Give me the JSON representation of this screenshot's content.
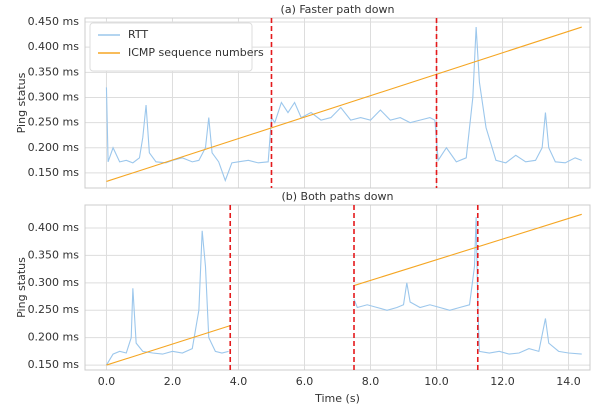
{
  "chart_data": [
    {
      "type": "line",
      "title": "(a) Faster path down",
      "ylabel": "Ping status",
      "xlim": [
        -0.65,
        14.65
      ],
      "ylim": [
        0.12,
        0.458
      ],
      "xticks": [
        0,
        2,
        4,
        6,
        8,
        10,
        12,
        14
      ],
      "yticks": [
        {
          "value": 0.15,
          "label": "0.150 ms"
        },
        {
          "value": 0.2,
          "label": "0.200 ms"
        },
        {
          "value": 0.25,
          "label": "0.250 ms"
        },
        {
          "value": 0.3,
          "label": "0.300 ms"
        },
        {
          "value": 0.35,
          "label": "0.350 ms"
        },
        {
          "value": 0.4,
          "label": "0.400 ms"
        },
        {
          "value": 0.45,
          "label": "0.450 ms"
        }
      ],
      "grid": true,
      "legend": "upper left",
      "vlines": [
        5.0,
        10.0
      ],
      "vline_color": "#e41a1c",
      "series": [
        {
          "name": "RTT",
          "color": "#9cc7ec",
          "x": [
            0.0,
            0.05,
            0.2,
            0.4,
            0.6,
            0.8,
            1.0,
            1.1,
            1.2,
            1.3,
            1.5,
            1.8,
            2.0,
            2.3,
            2.6,
            2.8,
            3.0,
            3.1,
            3.2,
            3.4,
            3.6,
            3.8,
            4.0,
            4.3,
            4.6,
            4.9,
            5.0,
            5.1,
            5.3,
            5.5,
            5.7,
            5.9,
            6.2,
            6.5,
            6.8,
            7.1,
            7.4,
            7.7,
            8.0,
            8.3,
            8.6,
            8.9,
            9.2,
            9.5,
            9.8,
            9.95,
            10.05,
            10.3,
            10.6,
            10.9,
            11.1,
            11.2,
            11.3,
            11.5,
            11.8,
            12.1,
            12.4,
            12.7,
            13.0,
            13.2,
            13.3,
            13.4,
            13.6,
            13.9,
            14.2,
            14.4
          ],
          "values": [
            0.32,
            0.172,
            0.2,
            0.172,
            0.175,
            0.17,
            0.18,
            0.22,
            0.285,
            0.19,
            0.172,
            0.17,
            0.175,
            0.18,
            0.172,
            0.175,
            0.2,
            0.26,
            0.19,
            0.172,
            0.135,
            0.17,
            0.172,
            0.175,
            0.17,
            0.172,
            0.26,
            0.25,
            0.29,
            0.27,
            0.29,
            0.26,
            0.27,
            0.255,
            0.26,
            0.28,
            0.255,
            0.26,
            0.255,
            0.275,
            0.255,
            0.26,
            0.25,
            0.255,
            0.26,
            0.255,
            0.175,
            0.2,
            0.172,
            0.18,
            0.3,
            0.44,
            0.33,
            0.24,
            0.175,
            0.17,
            0.185,
            0.172,
            0.175,
            0.2,
            0.27,
            0.2,
            0.172,
            0.17,
            0.18,
            0.175
          ]
        },
        {
          "name": "ICMP sequence numbers",
          "color": "#f5a623",
          "x": [
            0.0,
            14.4
          ],
          "values": [
            0.133,
            0.44
          ]
        }
      ]
    },
    {
      "type": "line",
      "title": "(b) Both paths down",
      "xlabel": "Time (s)",
      "ylabel": "Ping status",
      "xlim": [
        -0.65,
        14.65
      ],
      "ylim": [
        0.141,
        0.442
      ],
      "xticks": [
        {
          "value": 0,
          "label": "0.0"
        },
        {
          "value": 2,
          "label": "2.0"
        },
        {
          "value": 4,
          "label": "4.0"
        },
        {
          "value": 6,
          "label": "6.0"
        },
        {
          "value": 8,
          "label": "8.0"
        },
        {
          "value": 10,
          "label": "10.0"
        },
        {
          "value": 12,
          "label": "12.0"
        },
        {
          "value": 14,
          "label": "14.0"
        }
      ],
      "yticks": [
        {
          "value": 0.15,
          "label": "0.150 ms"
        },
        {
          "value": 0.2,
          "label": "0.200 ms"
        },
        {
          "value": 0.25,
          "label": "0.250 ms"
        },
        {
          "value": 0.3,
          "label": "0.300 ms"
        },
        {
          "value": 0.35,
          "label": "0.350 ms"
        },
        {
          "value": 0.4,
          "label": "0.400 ms"
        }
      ],
      "grid": true,
      "vlines": [
        3.75,
        7.5,
        11.25
      ],
      "vline_color": "#e41a1c",
      "series": [
        {
          "color": "#9cc7ec",
          "x": [
            0.0,
            0.2,
            0.4,
            0.6,
            0.75,
            0.8,
            0.9,
            1.1,
            1.4,
            1.7,
            2.0,
            2.3,
            2.6,
            2.8,
            2.9,
            3.0,
            3.1,
            3.3,
            3.5,
            3.7,
            3.75,
            7.5,
            7.6,
            7.9,
            8.2,
            8.5,
            8.8,
            9.0,
            9.1,
            9.2,
            9.5,
            9.8,
            10.1,
            10.4,
            10.7,
            11.0,
            11.15,
            11.2,
            11.25,
            11.3,
            11.6,
            11.9,
            12.2,
            12.5,
            12.8,
            13.1,
            13.3,
            13.4,
            13.7,
            14.0,
            14.4
          ],
          "values": [
            0.15,
            0.17,
            0.175,
            0.172,
            0.2,
            0.29,
            0.19,
            0.175,
            0.172,
            0.17,
            0.175,
            0.172,
            0.18,
            0.25,
            0.395,
            0.33,
            0.2,
            0.175,
            0.172,
            0.175,
            null,
            0.27,
            0.255,
            0.26,
            0.255,
            0.25,
            0.255,
            0.26,
            0.3,
            0.265,
            0.255,
            0.26,
            0.255,
            0.25,
            0.255,
            0.26,
            0.33,
            0.42,
            0.26,
            0.175,
            0.172,
            0.175,
            0.17,
            0.172,
            0.18,
            0.175,
            0.235,
            0.19,
            0.175,
            0.172,
            0.17
          ]
        },
        {
          "color": "#f5a623",
          "x": [
            0.0,
            3.75,
            3.75,
            7.5,
            14.4
          ],
          "values": [
            0.15,
            0.222,
            null,
            0.295,
            0.425
          ]
        }
      ]
    }
  ]
}
